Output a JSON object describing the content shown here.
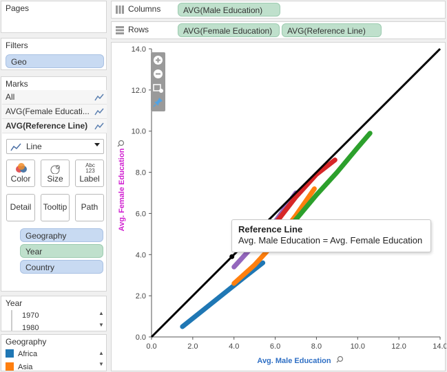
{
  "pages": {
    "title": "Pages"
  },
  "filters": {
    "title": "Filters",
    "items": [
      "Geo"
    ]
  },
  "marks": {
    "title": "Marks",
    "rows": [
      {
        "label": "All",
        "bold": false
      },
      {
        "label": "AVG(Female Educati...",
        "bold": false
      },
      {
        "label": "AVG(Reference Line)",
        "bold": true
      }
    ],
    "mark_type": "Line",
    "buttons": [
      "Color",
      "Size",
      "Label",
      "Detail",
      "Tooltip",
      "Path"
    ],
    "label_icon_text": {
      "top": "Abc",
      "bottom": "123"
    },
    "fields": [
      {
        "label": "Geography",
        "kind": "blue"
      },
      {
        "label": "Year",
        "kind": "green"
      },
      {
        "label": "Country",
        "kind": "blue"
      }
    ]
  },
  "year_card": {
    "title": "Year",
    "items": [
      "1970",
      "1980"
    ]
  },
  "geography_card": {
    "title": "Geography",
    "items": [
      {
        "label": "Africa",
        "color": "#1f77b4"
      },
      {
        "label": "Asia",
        "color": "#ff7f0e"
      }
    ]
  },
  "shelves": {
    "columns": {
      "label": "Columns",
      "pills": [
        "AVG(Male Education)"
      ]
    },
    "rows": {
      "label": "Rows",
      "pills": [
        "AVG(Female Education)",
        "AVG(Reference Line)"
      ]
    }
  },
  "tooltip": {
    "title": "Reference Line",
    "body": "Avg. Male Education = Avg. Female Education"
  },
  "chart_data": {
    "type": "line",
    "xlabel": "Avg. Male Education",
    "ylabel": "Avg. Female Education",
    "xlim": [
      0,
      14
    ],
    "ylim": [
      0,
      14
    ],
    "x_ticks": [
      "0.0",
      "2.0",
      "4.0",
      "6.0",
      "8.0",
      "10.0",
      "12.0",
      "14.0"
    ],
    "y_ticks": [
      "0.0",
      "2.0",
      "4.0",
      "6.0",
      "8.0",
      "10.0",
      "12.0",
      "14.0"
    ],
    "xlabel_color": "#2f6fc4",
    "ylabel_color": "#d11fd1",
    "reference_line": {
      "x": [
        0,
        14
      ],
      "y": [
        0,
        14
      ],
      "color": "#000000",
      "highlight_point": [
        3.9,
        3.9
      ]
    },
    "series": [
      {
        "color": "#1f77b4",
        "x": [
          1.5,
          2.5,
          3.5,
          4.5,
          5.4
        ],
        "y": [
          0.5,
          1.3,
          2.1,
          2.9,
          3.6
        ]
      },
      {
        "color": "#ff7f0e",
        "x": [
          4.0,
          5.0,
          6.0,
          7.0,
          7.9
        ],
        "y": [
          2.6,
          3.5,
          4.6,
          5.9,
          7.2
        ]
      },
      {
        "color": "#9467bd",
        "x": [
          4.0,
          5.0,
          6.0,
          7.0
        ],
        "y": [
          3.4,
          4.5,
          5.6,
          7.0
        ]
      },
      {
        "color": "#d62728",
        "x": [
          5.0,
          6.0,
          7.0,
          8.0,
          8.9
        ],
        "y": [
          4.3,
          5.5,
          6.8,
          7.9,
          8.6
        ]
      },
      {
        "color": "#2ca02c",
        "x": [
          6.0,
          7.0,
          8.0,
          9.0,
          10.0,
          10.6
        ],
        "y": [
          4.6,
          5.7,
          6.9,
          8.0,
          9.2,
          9.9
        ]
      }
    ]
  }
}
